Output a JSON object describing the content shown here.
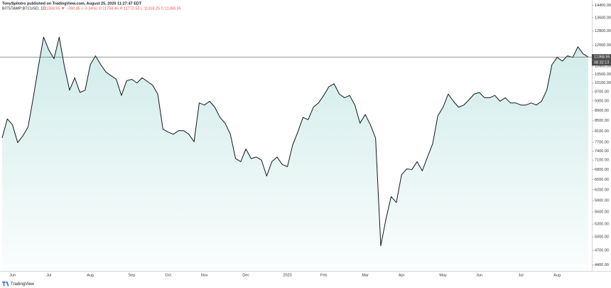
{
  "chart_data": {
    "type": "area-line",
    "title": "TonySpilotro published on TradingView.com, August 25, 2020 11:27:47 EDT",
    "symbol": "BITSTAMP:BTCUSD, 1D",
    "quote": "11368.95 ▼ −390.85 (−3.34%) O:11758.46 H:11772.53 L:11318.25 C:11368.95",
    "price_label": "11368.95",
    "countdown": "08:32:13",
    "watermark": "TradingView",
    "log_scale": true,
    "grid": false,
    "categories": [
      null,
      null,
      "Jun",
      null,
      null,
      null,
      null,
      null,
      null,
      "Jul",
      null,
      null,
      null,
      null,
      null,
      null,
      null,
      "Aug",
      null,
      null,
      null,
      null,
      null,
      null,
      null,
      "Sep",
      null,
      null,
      null,
      null,
      null,
      null,
      "Oct",
      null,
      null,
      null,
      null,
      null,
      null,
      "Nov",
      null,
      null,
      null,
      null,
      null,
      null,
      null,
      "Dec",
      null,
      null,
      null,
      null,
      null,
      null,
      null,
      "2020",
      null,
      null,
      null,
      null,
      null,
      null,
      "Feb",
      null,
      null,
      null,
      null,
      null,
      null,
      null,
      "Mar",
      null,
      null,
      null,
      null,
      null,
      null,
      "Apr",
      null,
      null,
      null,
      null,
      null,
      null,
      null,
      "May",
      null,
      null,
      null,
      null,
      null,
      null,
      "Jun",
      null,
      null,
      null,
      null,
      null,
      null,
      null,
      "Jul",
      null,
      null,
      null,
      null,
      null,
      null,
      "Aug",
      null,
      null,
      null,
      null,
      null,
      null
    ],
    "series": [
      {
        "name": "BTCUSD",
        "color": "#131722",
        "fill": "#26a69a",
        "values": [
          7854,
          8570,
          8340,
          7690,
          7930,
          8260,
          9440,
          10900,
          12450,
          11740,
          11280,
          12450,
          10900,
          9770,
          10340,
          9670,
          9770,
          10980,
          11430,
          10980,
          10620,
          10440,
          10270,
          9540,
          10200,
          10270,
          10100,
          10340,
          10170,
          10000,
          9600,
          8180,
          8070,
          7990,
          8120,
          8120,
          7990,
          7720,
          9220,
          9130,
          9290,
          9040,
          8630,
          8400,
          7990,
          7150,
          7050,
          7470,
          7150,
          7200,
          7100,
          6600,
          7050,
          7200,
          6960,
          6890,
          7600,
          8070,
          8630,
          8540,
          9040,
          9220,
          9540,
          9930,
          10060,
          9600,
          9440,
          9540,
          9130,
          8400,
          8740,
          8340,
          7850,
          4800,
          5430,
          6010,
          5850,
          6640,
          6820,
          6800,
          7050,
          6760,
          7200,
          7650,
          8690,
          9040,
          9600,
          9290,
          9040,
          9130,
          9350,
          9600,
          9670,
          9440,
          9440,
          9540,
          9290,
          9440,
          9220,
          9220,
          9130,
          9130,
          9220,
          9130,
          9290,
          9770,
          10980,
          11350,
          11160,
          11430,
          11350,
          11910,
          11540,
          11368.95
        ]
      }
    ],
    "ylim": [
      4280,
      14750
    ],
    "yticks": [
      {
        "value": 14400,
        "label": "14400.00"
      },
      {
        "value": 13600,
        "label": "13600.00"
      },
      {
        "value": 12800,
        "label": "12800.00"
      },
      {
        "value": 12000,
        "label": "12000.00"
      },
      {
        "value": 10900,
        "label": "10900.00"
      },
      {
        "value": 10500,
        "label": "10500.00"
      },
      {
        "value": 10100,
        "label": "10100.00"
      },
      {
        "value": 9700,
        "label": "9700.00"
      },
      {
        "value": 9300,
        "label": "9300.00"
      },
      {
        "value": 8900,
        "label": "8900.00"
      },
      {
        "value": 8500,
        "label": "8500.00"
      },
      {
        "value": 8100,
        "label": "8100.00"
      },
      {
        "value": 7700,
        "label": "7700.00"
      },
      {
        "value": 7400,
        "label": "7400.00"
      },
      {
        "value": 7100,
        "label": "7100.00"
      },
      {
        "value": 6800,
        "label": "6800.00"
      },
      {
        "value": 6500,
        "label": "6500.00"
      },
      {
        "value": 6200,
        "label": "6200.00"
      },
      {
        "value": 5900,
        "label": "5900.00"
      },
      {
        "value": 5600,
        "label": "5600.00"
      },
      {
        "value": 5300,
        "label": "5300.00"
      },
      {
        "value": 5000,
        "label": "5000.00"
      },
      {
        "value": 4700,
        "label": "4700.00"
      },
      {
        "value": 4400,
        "label": "4400.00"
      }
    ]
  }
}
